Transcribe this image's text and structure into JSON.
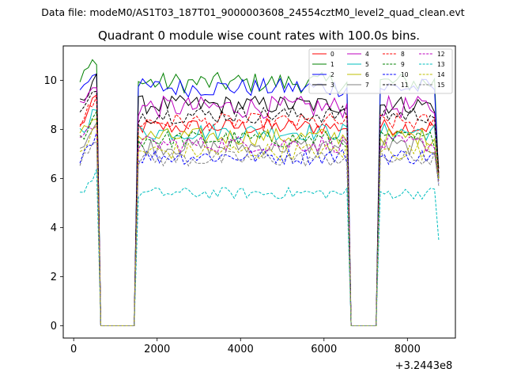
{
  "chart_data": {
    "type": "line",
    "suptitle": "Data file: modeM0/AS1T03_187T01_9000003608_24554cztM0_level2_quad_clean.evt",
    "title": "Quadrant 0 module wise count rates with 100.0s bins.",
    "xlabel": "",
    "ylabel": "",
    "x_offset_label": "+3.2443e8",
    "xlim": [
      -250,
      9150
    ],
    "ylim": [
      -0.5,
      11.4
    ],
    "xticks": [
      0,
      2000,
      4000,
      6000,
      8000
    ],
    "yticks": [
      0,
      2,
      4,
      6,
      8,
      10
    ],
    "x_start": 150,
    "x_step": 100,
    "bins": 87,
    "gaps": [
      [
        650,
        1520
      ],
      [
        6650,
        7330
      ]
    ],
    "legend_location": "upper right",
    "legend_columns": 4,
    "series": [
      {
        "name": "0",
        "color": "#ff0000",
        "dash": "solid",
        "level": 8.1,
        "peak": 9.0,
        "end": 6.2,
        "noise": 0.28
      },
      {
        "name": "1",
        "color": "#008000",
        "dash": "solid",
        "level": 9.9,
        "peak": 10.7,
        "end": 6.0,
        "noise": 0.35
      },
      {
        "name": "2",
        "color": "#0000ff",
        "dash": "solid",
        "level": 9.7,
        "peak": 10.3,
        "end": 6.0,
        "noise": 0.32
      },
      {
        "name": "3",
        "color": "#000000",
        "dash": "solid",
        "level": 9.0,
        "peak": 10.0,
        "end": 6.4,
        "noise": 0.32
      },
      {
        "name": "4",
        "color": "#bf00bf",
        "dash": "solid",
        "level": 8.9,
        "peak": 9.6,
        "end": 6.0,
        "noise": 0.38
      },
      {
        "name": "5",
        "color": "#00bfbf",
        "dash": "solid",
        "level": 7.9,
        "peak": 8.6,
        "end": 6.0,
        "noise": 0.3
      },
      {
        "name": "6",
        "color": "#bfbf00",
        "dash": "solid",
        "level": 7.7,
        "peak": 8.4,
        "end": 6.0,
        "noise": 0.3
      },
      {
        "name": "7",
        "color": "#808080",
        "dash": "solid",
        "level": 7.3,
        "peak": 8.0,
        "end": 5.9,
        "noise": 0.3
      },
      {
        "name": "8",
        "color": "#ff0000",
        "dash": "dashed",
        "level": 8.3,
        "peak": 9.0,
        "end": 6.2,
        "noise": 0.3
      },
      {
        "name": "9",
        "color": "#008000",
        "dash": "dashed",
        "level": 7.6,
        "peak": 8.4,
        "end": 6.0,
        "noise": 0.3
      },
      {
        "name": "10",
        "color": "#0000ff",
        "dash": "dashed",
        "level": 6.9,
        "peak": 7.6,
        "end": 5.8,
        "noise": 0.28
      },
      {
        "name": "11",
        "color": "#000000",
        "dash": "dashed",
        "level": 8.6,
        "peak": 9.3,
        "end": 6.2,
        "noise": 0.3
      },
      {
        "name": "12",
        "color": "#bf00bf",
        "dash": "dashed",
        "level": 7.4,
        "peak": 8.1,
        "end": 5.9,
        "noise": 0.3
      },
      {
        "name": "13",
        "color": "#00bfbf",
        "dash": "dashed",
        "level": 5.4,
        "peak": 6.0,
        "end": 3.5,
        "noise": 0.2
      },
      {
        "name": "14",
        "color": "#bfbf00",
        "dash": "dashed",
        "level": 7.1,
        "peak": 7.8,
        "end": 5.9,
        "noise": 0.3
      },
      {
        "name": "15",
        "color": "#808080",
        "dash": "dashed",
        "level": 6.8,
        "peak": 7.5,
        "end": 5.7,
        "noise": 0.28
      }
    ]
  }
}
